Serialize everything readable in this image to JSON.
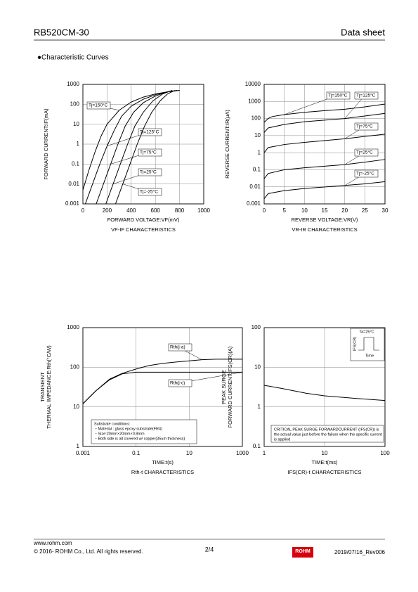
{
  "header": {
    "title": "RB520CM-30",
    "doc_type": "Data sheet"
  },
  "section_title": "●Characteristic Curves",
  "chart_data": [
    {
      "type": "line",
      "caption": "VF-IF CHARACTERISTICS",
      "xlabel": "FORWARD VOLTAGE:VF(mV)",
      "ylabel": [
        "FORWARD CURRENT:IF(mA)"
      ],
      "xscale": "linear",
      "yscale": "log",
      "grid": true,
      "xlim": [
        0,
        1000
      ],
      "xticks": [
        0,
        200,
        400,
        600,
        800,
        1000
      ],
      "ylim": [
        0.001,
        1000
      ],
      "yticks": [
        0.001,
        0.01,
        0.1,
        1,
        10,
        100,
        1000
      ],
      "series": [
        {
          "name": "Tj=150°C",
          "color": "#000000",
          "x": [
            0,
            50,
            100,
            150,
            200,
            300,
            400,
            500,
            600,
            700,
            800
          ],
          "values": [
            0.005,
            0.05,
            0.4,
            2.5,
            10,
            50,
            130,
            230,
            330,
            420,
            500
          ]
        },
        {
          "name": "Tj=125°C",
          "color": "#000000",
          "x": [
            20,
            80,
            140,
            200,
            260,
            320,
            400,
            500,
            600,
            700,
            800
          ],
          "values": [
            0.001,
            0.01,
            0.1,
            0.8,
            5,
            25,
            80,
            180,
            300,
            420,
            500
          ]
        },
        {
          "name": "Tj=75°C",
          "color": "#000000",
          "x": [
            110,
            170,
            230,
            290,
            350,
            420,
            500,
            600,
            700,
            780
          ],
          "values": [
            0.001,
            0.01,
            0.1,
            1,
            8,
            40,
            120,
            260,
            420,
            500
          ]
        },
        {
          "name": "Tj=25°C",
          "color": "#000000",
          "x": [
            190,
            250,
            310,
            370,
            430,
            500,
            580,
            660,
            740
          ],
          "values": [
            0.001,
            0.01,
            0.1,
            1,
            8,
            40,
            150,
            330,
            500
          ]
        },
        {
          "name": "Tj=-25°C",
          "color": "#000000",
          "x": [
            270,
            330,
            390,
            450,
            510,
            570,
            640,
            700,
            760
          ],
          "values": [
            0.001,
            0.01,
            0.1,
            1,
            8,
            40,
            150,
            330,
            500
          ]
        }
      ]
    },
    {
      "type": "line",
      "caption": "VR-IR CHARACTERISTICS",
      "xlabel": "REVERSE VOLTAGE:VR(V)",
      "ylabel": [
        "REVERSE CURRENT:IR(μA)"
      ],
      "xscale": "linear",
      "yscale": "log",
      "grid": true,
      "xlim": [
        0,
        30
      ],
      "xticks": [
        0,
        5,
        10,
        15,
        20,
        25,
        30
      ],
      "ylim": [
        0.001,
        10000
      ],
      "yticks": [
        0.001,
        0.01,
        0.1,
        1,
        10,
        100,
        1000,
        10000
      ],
      "series": [
        {
          "name": "Tj=150°C",
          "color": "#000000",
          "x": [
            0,
            1,
            2,
            5,
            10,
            15,
            20,
            25,
            30
          ],
          "values": [
            60,
            100,
            130,
            170,
            230,
            290,
            350,
            480,
            700
          ]
        },
        {
          "name": "Tj=125°C",
          "color": "#000000",
          "x": [
            0,
            1,
            5,
            10,
            20,
            25,
            30
          ],
          "values": [
            15,
            28,
            45,
            65,
            100,
            140,
            200
          ]
        },
        {
          "name": "Tj=75°C",
          "color": "#000000",
          "x": [
            0,
            1,
            5,
            10,
            20,
            25,
            30
          ],
          "values": [
            1,
            2,
            3,
            4,
            6.5,
            9,
            12
          ]
        },
        {
          "name": "Tj=25°C",
          "color": "#000000",
          "x": [
            0,
            1,
            5,
            10,
            20,
            25,
            30
          ],
          "values": [
            0.03,
            0.06,
            0.1,
            0.13,
            0.2,
            0.28,
            0.4
          ]
        },
        {
          "name": "Tj=-25°C",
          "color": "#000000",
          "x": [
            0,
            1,
            5,
            10,
            20,
            25,
            30
          ],
          "values": [
            0.002,
            0.004,
            0.006,
            0.008,
            0.012,
            0.015,
            0.02
          ]
        }
      ]
    },
    {
      "type": "line",
      "caption": "Rth-t CHARACTERISTICS",
      "xlabel": "TIME:t(s)",
      "ylabel": [
        "TRANSIENT",
        "THERMAL IMPEDANCE:Rth(°C/W)"
      ],
      "xscale": "log",
      "yscale": "log",
      "grid": true,
      "xlim": [
        0.001,
        1000
      ],
      "xticks": [
        0.001,
        0.1,
        10,
        1000
      ],
      "ylim": [
        1,
        1000
      ],
      "yticks": [
        1,
        10,
        100,
        1000
      ],
      "series": [
        {
          "name": "Rth(j-a)",
          "color": "#000000",
          "x": [
            0.001,
            0.003,
            0.01,
            0.03,
            0.1,
            0.3,
            1,
            3,
            10,
            30,
            100,
            1000
          ],
          "values": [
            12,
            25,
            50,
            70,
            90,
            110,
            125,
            135,
            145,
            155,
            160,
            160
          ]
        },
        {
          "name": "Rth(j-c)",
          "color": "#000000",
          "x": [
            0.001,
            0.003,
            0.01,
            0.03,
            0.1,
            1000
          ],
          "values": [
            12,
            25,
            48,
            68,
            75,
            75
          ]
        }
      ],
      "notes": [
        "Substrate conditions:",
        "・Material : glass epoxy substrate(FR4)",
        "・Size:20mm×20mm×0.8mm",
        "・Both side is all covered w/ copper(35um thickness)"
      ]
    },
    {
      "type": "line",
      "caption": "IFS(CR)-t CHARACTERISTICS",
      "xlabel": "TIME:t(ms)",
      "ylabel": [
        "PEAK SURGE",
        "FORWARD CURRENT:IFS(CR)(A)"
      ],
      "xscale": "log",
      "yscale": "log",
      "grid": true,
      "xlim": [
        1,
        100
      ],
      "xticks": [
        1,
        10,
        100
      ],
      "ylim": [
        0.1,
        100
      ],
      "yticks": [
        0.1,
        1,
        10,
        100
      ],
      "series": [
        {
          "color": "#000000",
          "x": [
            1,
            2,
            5,
            10,
            30,
            100
          ],
          "values": [
            3.5,
            2.9,
            2.2,
            1.9,
            1.65,
            1.45
          ]
        }
      ],
      "inset": {
        "condition": "Ta=25°C",
        "ylabel": "IFS(CR)",
        "xlabel": "Time"
      },
      "notes": [
        "CRITICAL PEAK SURGE FORWARDCURRENT (IFS(CR)) is",
        "the actual value just before the failure when the specific current",
        "is applied"
      ]
    }
  ],
  "footer": {
    "url": "www.rohm.com",
    "copyright": "© 2016- ROHM Co., Ltd. All rights reserved.",
    "page": "2/4",
    "logo": "ROHM",
    "revision": "2019/07/16_Rev006"
  }
}
